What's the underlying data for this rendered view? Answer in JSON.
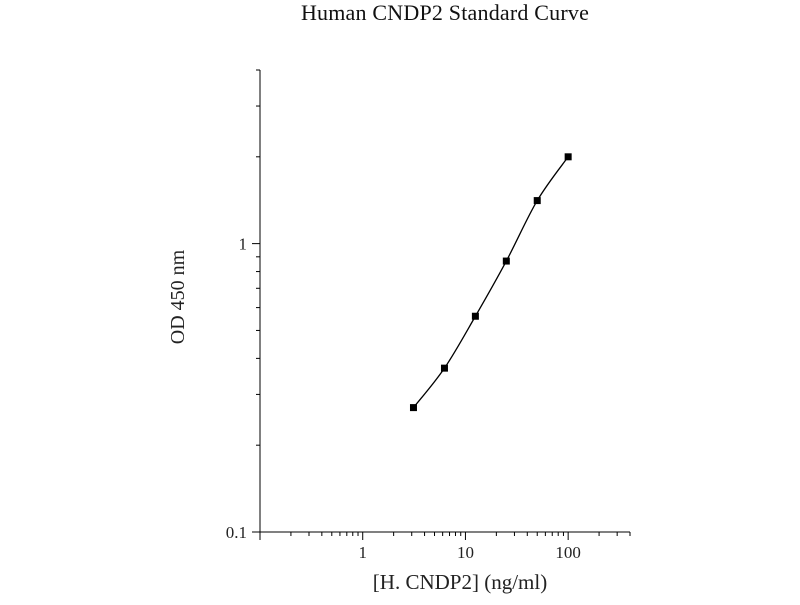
{
  "chart_data": {
    "type": "scatter",
    "title": "Human CNDP2 Standard Curve",
    "xlabel": "[H. CNDP2] (ng/ml)",
    "ylabel": "OD 450 nm",
    "xscale": "log",
    "yscale": "log",
    "xlim": [
      0.1,
      400
    ],
    "ylim": [
      0.1,
      4
    ],
    "xticks": [
      {
        "value": 1,
        "label": "1"
      },
      {
        "value": 10,
        "label": "10"
      },
      {
        "value": 100,
        "label": "100"
      }
    ],
    "yticks": [
      {
        "value": 0.1,
        "label": "0.1"
      },
      {
        "value": 1,
        "label": "1"
      }
    ],
    "grid": false,
    "legend": "none",
    "series": [
      {
        "x": [
          3.12,
          6.25,
          12.5,
          25,
          50,
          100
        ],
        "y": [
          0.27,
          0.37,
          0.56,
          0.87,
          1.41,
          2.0
        ],
        "marker": "square",
        "fitted_curve": true,
        "color": "#000000"
      }
    ]
  }
}
